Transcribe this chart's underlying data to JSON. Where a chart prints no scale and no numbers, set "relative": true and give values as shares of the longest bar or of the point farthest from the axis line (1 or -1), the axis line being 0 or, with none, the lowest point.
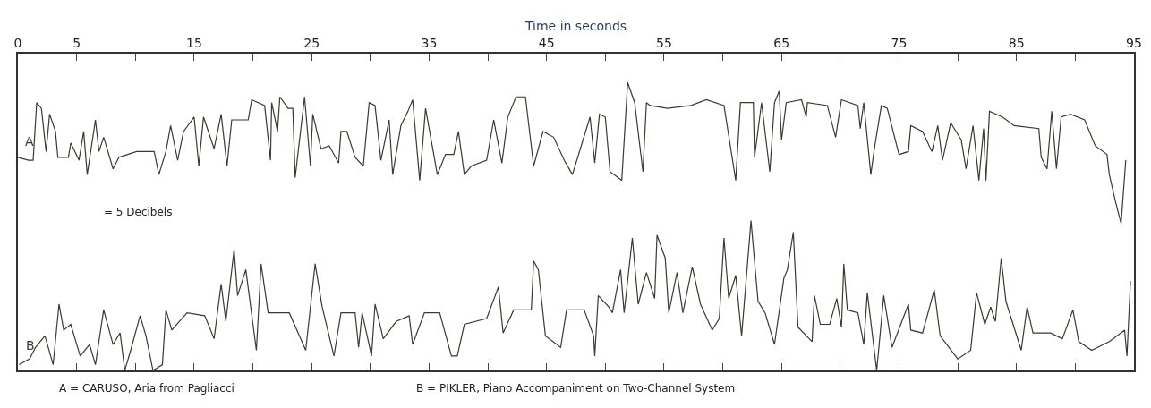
{
  "chart_data": {
    "type": "line",
    "relative": true,
    "xlabel": "Time in seconds",
    "xlim": [
      0,
      95
    ],
    "xticks": [
      0,
      5,
      {
        "value": 10,
        "label": null
      },
      15,
      {
        "value": 20,
        "label": null
      },
      25,
      {
        "value": 30,
        "label": null
      },
      35,
      {
        "value": 40,
        "label": null
      },
      45,
      {
        "value": 50,
        "label": null
      },
      55,
      {
        "value": 60,
        "label": null
      },
      65,
      {
        "value": 70,
        "label": null
      },
      75,
      {
        "value": 80,
        "label": null
      },
      85,
      {
        "value": 90,
        "label": null
      },
      95
    ],
    "legend": false,
    "marker": "none",
    "line_style": "solid",
    "annotations": [
      "= 5 Decibels",
      "A = CARUSO, Aria from Pagliacci",
      "B = PIKLER, Piano Accompaniment on Two-Channel System"
    ],
    "series": [
      {
        "name": "A",
        "color": "#3a3a30",
        "x": [
          0.0,
          0.9,
          1.3,
          1.6,
          2.0,
          2.4,
          2.7,
          3.2,
          3.4,
          4.3,
          4.5,
          5.2,
          5.6,
          5.9,
          6.6,
          6.9,
          7.3,
          8.1,
          8.6,
          10.1,
          11.6,
          12.0,
          12.6,
          13.0,
          13.6,
          14.1,
          15.0,
          15.4,
          15.8,
          16.7,
          17.3,
          17.8,
          18.2,
          19.6,
          19.9,
          21.0,
          21.5,
          21.6,
          22.1,
          22.3,
          23.0,
          23.4,
          23.6,
          24.4,
          24.9,
          25.1,
          25.8,
          26.5,
          27.3,
          27.5,
          28.0,
          28.7,
          29.4,
          29.9,
          30.4,
          30.9,
          31.6,
          31.9,
          32.6,
          33.2,
          33.6,
          34.2,
          34.7,
          35.7,
          36.4,
          37.1,
          37.5,
          38.0,
          38.6,
          39.9,
          40.5,
          41.2,
          41.7,
          42.4,
          43.2,
          43.9,
          44.7,
          45.6,
          46.5,
          47.2,
          48.7,
          49.1,
          49.5,
          50.0,
          50.4,
          51.4,
          51.9,
          52.5,
          53.2,
          53.5,
          53.8,
          55.3,
          57.3,
          58.6,
          60.1,
          61.1,
          61.5,
          62.6,
          62.7,
          63.3,
          64.0,
          64.4,
          64.8,
          65.0,
          65.4,
          66.7,
          67.1,
          67.2,
          68.9,
          69.6,
          70.1,
          71.5,
          71.7,
          72.0,
          72.6,
          72.9,
          73.5,
          74.0,
          75.0,
          75.8,
          76.0,
          77.0,
          77.8,
          78.3,
          78.7,
          79.4,
          80.3,
          80.7,
          81.3,
          81.8,
          82.2,
          82.4,
          82.7,
          83.8,
          84.8,
          86.9,
          87.1,
          87.6,
          88.0,
          88.4,
          88.8,
          89.6,
          90.8,
          91.7,
          92.7,
          92.9,
          93.4,
          93.9,
          94.3
        ],
        "values": [
          0.74,
          0.73,
          0.73,
          0.93,
          0.91,
          0.76,
          0.89,
          0.83,
          0.74,
          0.74,
          0.79,
          0.73,
          0.83,
          0.68,
          0.87,
          0.76,
          0.81,
          0.7,
          0.74,
          0.76,
          0.76,
          0.68,
          0.76,
          0.85,
          0.73,
          0.83,
          0.88,
          0.71,
          0.88,
          0.77,
          0.89,
          0.71,
          0.87,
          0.87,
          0.94,
          0.92,
          0.73,
          0.93,
          0.83,
          0.95,
          0.91,
          0.91,
          0.67,
          0.95,
          0.71,
          0.89,
          0.77,
          0.78,
          0.72,
          0.83,
          0.83,
          0.74,
          0.71,
          0.93,
          0.92,
          0.73,
          0.87,
          0.68,
          0.85,
          0.9,
          0.94,
          0.66,
          0.91,
          0.68,
          0.75,
          0.75,
          0.83,
          0.68,
          0.71,
          0.73,
          0.87,
          0.72,
          0.88,
          0.95,
          0.95,
          0.71,
          0.83,
          0.81,
          0.73,
          0.68,
          0.88,
          0.72,
          0.89,
          0.88,
          0.69,
          0.66,
          1.0,
          0.93,
          0.69,
          0.93,
          0.92,
          0.91,
          0.92,
          0.94,
          0.92,
          0.66,
          0.93,
          0.93,
          0.74,
          0.93,
          0.69,
          0.93,
          0.97,
          0.8,
          0.93,
          0.94,
          0.88,
          0.93,
          0.92,
          0.81,
          0.94,
          0.92,
          0.84,
          0.93,
          0.68,
          0.77,
          0.92,
          0.91,
          0.75,
          0.76,
          0.85,
          0.83,
          0.76,
          0.85,
          0.73,
          0.86,
          0.8,
          0.7,
          0.85,
          0.66,
          0.84,
          0.66,
          0.9,
          0.88,
          0.85,
          0.84,
          0.74,
          0.7,
          0.9,
          0.7,
          0.88,
          0.89,
          0.87,
          0.78,
          0.75,
          0.68,
          0.59,
          0.51,
          0.73
        ]
      },
      {
        "name": "B",
        "color": "#3a3a30",
        "x": [
          0.1,
          1.0,
          1.5,
          2.3,
          3.0,
          3.5,
          3.9,
          4.5,
          5.3,
          6.1,
          6.6,
          7.3,
          8.1,
          8.7,
          9.1,
          9.6,
          10.4,
          10.9,
          11.5,
          12.3,
          12.6,
          13.1,
          14.4,
          15.9,
          16.7,
          17.3,
          17.7,
          18.4,
          18.7,
          19.4,
          20.3,
          20.7,
          21.3,
          23.1,
          24.5,
          25.3,
          25.9,
          26.9,
          27.5,
          28.7,
          29.0,
          29.3,
          30.1,
          30.4,
          31.1,
          32.2,
          33.3,
          33.6,
          34.6,
          35.9,
          36.9,
          37.4,
          38.0,
          39.9,
          40.9,
          41.3,
          42.2,
          43.7,
          43.9,
          44.3,
          44.9,
          46.2,
          46.7,
          48.2,
          49.0,
          49.1,
          49.4,
          50.3,
          50.6,
          51.3,
          51.6,
          52.3,
          52.8,
          53.5,
          54.2,
          54.4,
          55.1,
          55.4,
          56.1,
          56.6,
          57.4,
          58.1,
          59.1,
          59.7,
          60.1,
          60.5,
          61.1,
          61.6,
          62.4,
          63.0,
          63.6,
          64.4,
          65.2,
          65.5,
          66.0,
          66.4,
          67.6,
          67.8,
          68.3,
          69.1,
          69.7,
          70.1,
          70.3,
          70.6,
          71.5,
          72.0,
          72.3,
          73.1,
          73.7,
          74.4,
          75.8,
          76.0,
          77.0,
          78.0,
          78.5,
          80.0,
          81.1,
          81.6,
          82.3,
          82.8,
          83.2,
          83.7,
          84.1,
          85.4,
          85.9,
          86.4,
          87.9,
          88.9,
          89.8,
          90.3,
          91.4,
          92.9,
          94.2,
          94.4,
          94.7
        ],
        "values": [
          0.02,
          0.04,
          0.08,
          0.12,
          0.02,
          0.23,
          0.14,
          0.16,
          0.05,
          0.09,
          0.02,
          0.21,
          0.09,
          0.13,
          0.0,
          0.07,
          0.19,
          0.12,
          0.0,
          0.02,
          0.21,
          0.14,
          0.2,
          0.19,
          0.11,
          0.3,
          0.17,
          0.42,
          0.26,
          0.35,
          0.07,
          0.37,
          0.2,
          0.2,
          0.07,
          0.37,
          0.22,
          0.05,
          0.2,
          0.2,
          0.08,
          0.2,
          0.05,
          0.23,
          0.11,
          0.17,
          0.19,
          0.09,
          0.2,
          0.2,
          0.05,
          0.05,
          0.16,
          0.18,
          0.29,
          0.13,
          0.21,
          0.21,
          0.38,
          0.35,
          0.12,
          0.08,
          0.21,
          0.21,
          0.12,
          0.05,
          0.26,
          0.22,
          0.2,
          0.35,
          0.2,
          0.46,
          0.23,
          0.34,
          0.25,
          0.47,
          0.39,
          0.2,
          0.34,
          0.2,
          0.36,
          0.23,
          0.14,
          0.18,
          0.46,
          0.25,
          0.33,
          0.12,
          0.52,
          0.24,
          0.2,
          0.09,
          0.32,
          0.35,
          0.48,
          0.15,
          0.1,
          0.26,
          0.16,
          0.16,
          0.25,
          0.15,
          0.37,
          0.21,
          0.2,
          0.09,
          0.27,
          0.0,
          0.26,
          0.08,
          0.23,
          0.14,
          0.13,
          0.28,
          0.12,
          0.04,
          0.07,
          0.27,
          0.16,
          0.22,
          0.17,
          0.39,
          0.24,
          0.07,
          0.22,
          0.13,
          0.13,
          0.11,
          0.21,
          0.1,
          0.07,
          0.1,
          0.14,
          0.05,
          0.31
        ]
      }
    ]
  }
}
